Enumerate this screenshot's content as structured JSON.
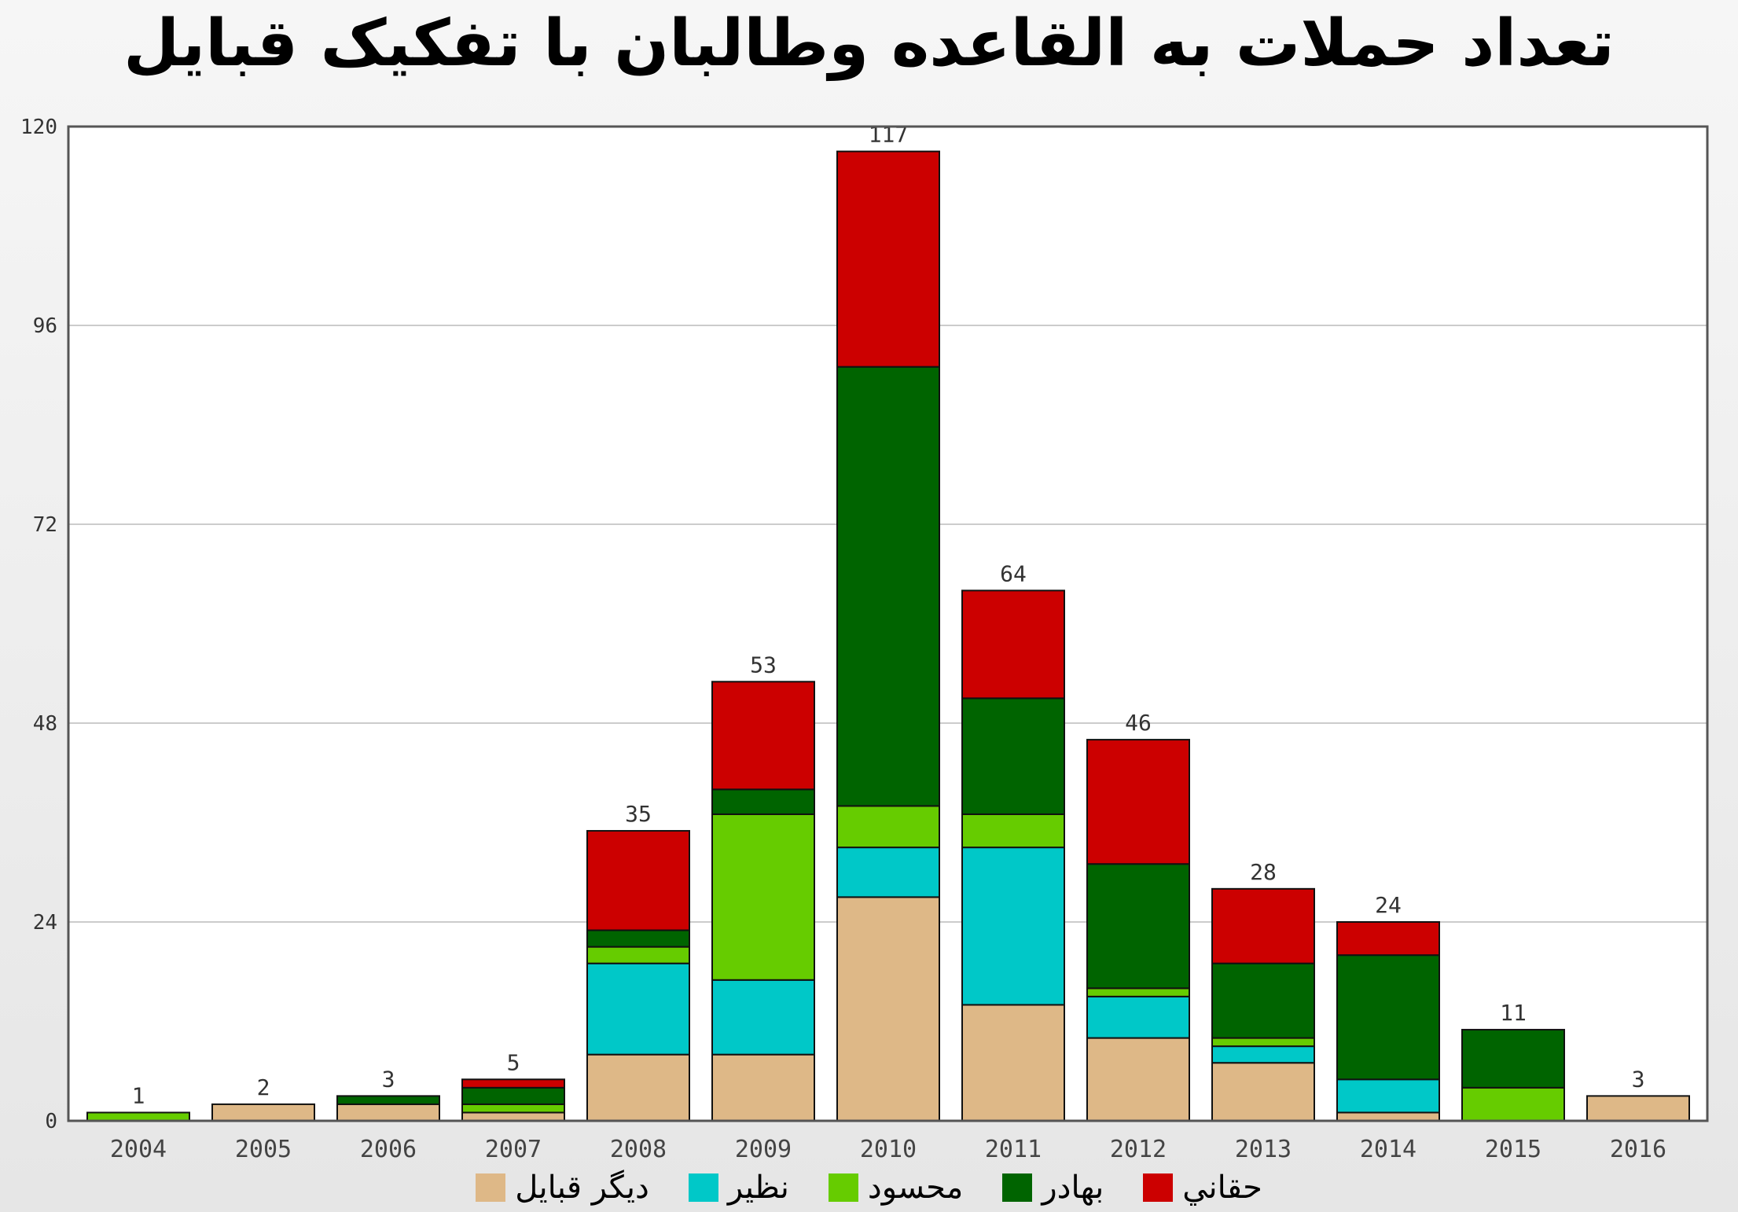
{
  "chart_data": {
    "type": "bar",
    "stacked": true,
    "title": "تعداد حملات به القاعده وطالبان با تفکیک قبایل",
    "xlabel": "",
    "ylabel": "",
    "ylim": [
      0,
      120
    ],
    "yticks": [
      0,
      24,
      48,
      72,
      96,
      120
    ],
    "grid": true,
    "legend_position": "bottom",
    "categories": [
      "2004",
      "2005",
      "2006",
      "2007",
      "2008",
      "2009",
      "2010",
      "2011",
      "2012",
      "2013",
      "2014",
      "2015",
      "2016"
    ],
    "totals": [
      1,
      2,
      3,
      5,
      35,
      53,
      117,
      64,
      46,
      28,
      24,
      11,
      3
    ],
    "series": [
      {
        "name": "ديگر قبايل",
        "color": "#deb887",
        "values": [
          0,
          2,
          2,
          1,
          8,
          8,
          27,
          14,
          10,
          7,
          1,
          0,
          3
        ]
      },
      {
        "name": "نظير",
        "color": "#00c8c8",
        "values": [
          0,
          0,
          0,
          0,
          11,
          9,
          6,
          19,
          5,
          2,
          4,
          0,
          0
        ]
      },
      {
        "name": "محسود",
        "color": "#66cc00",
        "values": [
          1,
          0,
          0,
          1,
          2,
          20,
          5,
          4,
          1,
          1,
          0,
          4,
          0
        ]
      },
      {
        "name": "بهادر",
        "color": "#006400",
        "values": [
          0,
          0,
          1,
          2,
          2,
          3,
          53,
          14,
          15,
          9,
          15,
          7,
          0
        ]
      },
      {
        "name": "حقاني",
        "color": "#cc0000",
        "values": [
          0,
          0,
          0,
          1,
          12,
          13,
          26,
          13,
          15,
          9,
          4,
          0,
          0
        ]
      }
    ],
    "legend_order": [
      4,
      3,
      2,
      1,
      0
    ]
  }
}
